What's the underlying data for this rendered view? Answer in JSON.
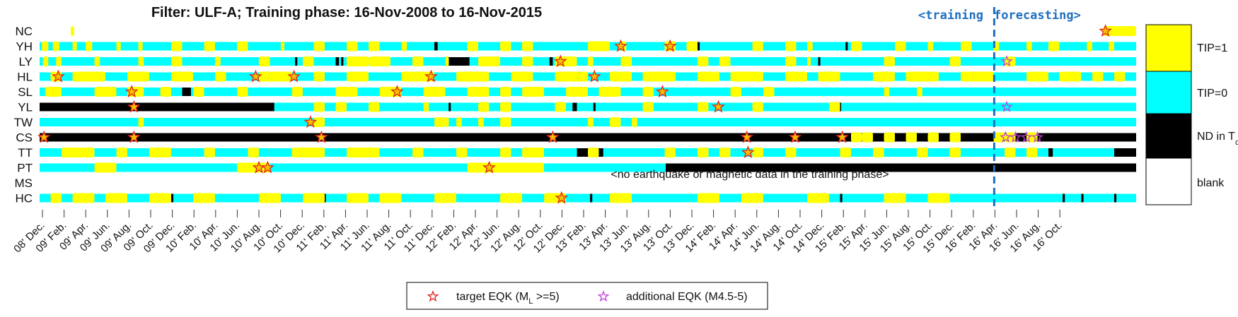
{
  "title": "Filter: ULF-A; Training phase: 16-Nov-2008 to 16-Nov-2015",
  "phase_labels": {
    "training": "<training",
    "forecasting": "forecasting>"
  },
  "no_data_note": "<no earthquake or magnetic data in the training phase>",
  "legend": {
    "tip1": "TIP=1",
    "tip0": "TIP=0",
    "nd": "ND in T",
    "nd_sub": "obs",
    "blank": "blank"
  },
  "bottom_legend": {
    "target": "target EQK (M",
    "target_sub": "L",
    "target_tail": " >=5)",
    "additional": "additional EQK (M4.5-5)"
  },
  "colors": {
    "tip1": "#ffff00",
    "tip0": "#00ffff",
    "nd": "#000000",
    "blank": "#ffffff",
    "target": "#e0201b",
    "additional": "#c040e0",
    "forecast_line": "#1f6fc0"
  },
  "chart_data": {
    "type": "timeline",
    "x_range": [
      "2008-11-16",
      "2016-11-30"
    ],
    "forecast_start": "2015-11-16",
    "x_tick_labels": [
      "08' Dec.",
      "09' Feb.",
      "09' Apr.",
      "09' Jun.",
      "09' Aug.",
      "09' Oct.",
      "09' Dec.",
      "10' Feb.",
      "10' Apr.",
      "10' Jun.",
      "10' Aug.",
      "10' Oct.",
      "10' Dec.",
      "11' Feb.",
      "11' Apr.",
      "11' Jun.",
      "11' Aug.",
      "11' Oct.",
      "11' Dec.",
      "12' Feb.",
      "12' Apr.",
      "12' Jun.",
      "12' Aug.",
      "12' Oct.",
      "12' Dec.",
      "13' Feb.",
      "13' Apr.",
      "13' Jun.",
      "13' Aug.",
      "13' Oct.",
      "13' Dec.",
      "14' Feb.",
      "14' Apr.",
      "14' Jun.",
      "14' Aug.",
      "14' Oct.",
      "14' Dec.",
      "15' Feb.",
      "15' Apr.",
      "15' Jun.",
      "15' Aug.",
      "15' Oct.",
      "15' Dec.",
      "16' Feb.",
      "16' Apr.",
      "16' Jun.",
      "16' Aug.",
      "16' Oct."
    ],
    "stations": [
      {
        "name": "NC",
        "base": "blank",
        "nd": [],
        "tip": [
          [
            0.03,
            0.03
          ],
          [
            0.97,
            1.0
          ]
        ],
        "targets": [
          0.972
        ],
        "additional": []
      },
      {
        "name": "YH",
        "base": "tip0",
        "nd": [
          [
            0.36,
            0.363
          ],
          [
            0.6,
            0.602
          ],
          [
            0.735,
            0.737
          ]
        ],
        "tip": [
          [
            0.002,
            0.008
          ],
          [
            0.012,
            0.018
          ],
          [
            0.03,
            0.034
          ],
          [
            0.042,
            0.048
          ],
          [
            0.07,
            0.074
          ],
          [
            0.09,
            0.094
          ],
          [
            0.12,
            0.13
          ],
          [
            0.15,
            0.16
          ],
          [
            0.18,
            0.19
          ],
          [
            0.22,
            0.222
          ],
          [
            0.25,
            0.26
          ],
          [
            0.28,
            0.29
          ],
          [
            0.3,
            0.31
          ],
          [
            0.33,
            0.335
          ],
          [
            0.39,
            0.4
          ],
          [
            0.42,
            0.43
          ],
          [
            0.44,
            0.45
          ],
          [
            0.5,
            0.52
          ],
          [
            0.53,
            0.535
          ],
          [
            0.57,
            0.58
          ],
          [
            0.59,
            0.6
          ],
          [
            0.65,
            0.66
          ],
          [
            0.68,
            0.69
          ],
          [
            0.7,
            0.705
          ],
          [
            0.74,
            0.75
          ],
          [
            0.78,
            0.79
          ],
          [
            0.81,
            0.815
          ],
          [
            0.84,
            0.85
          ],
          [
            0.87,
            0.875
          ],
          [
            0.9,
            0.905
          ],
          [
            0.92,
            0.93
          ],
          [
            0.955,
            0.96
          ],
          [
            0.975,
            0.98
          ]
        ],
        "targets": [
          0.53,
          0.575
        ],
        "additional": []
      },
      {
        "name": "LY",
        "base": "tip0",
        "nd": [
          [
            0.233,
            0.235
          ],
          [
            0.27,
            0.273
          ],
          [
            0.275,
            0.277
          ],
          [
            0.37,
            0.39
          ],
          [
            0.39,
            0.392
          ],
          [
            0.465,
            0.468
          ],
          [
            0.71,
            0.712
          ]
        ],
        "tip": [
          [
            0.003,
            0.008
          ],
          [
            0.015,
            0.02
          ],
          [
            0.05,
            0.055
          ],
          [
            0.09,
            0.095
          ],
          [
            0.12,
            0.13
          ],
          [
            0.16,
            0.165
          ],
          [
            0.2,
            0.21
          ],
          [
            0.24,
            0.25
          ],
          [
            0.28,
            0.3
          ],
          [
            0.3,
            0.32
          ],
          [
            0.34,
            0.35
          ],
          [
            0.37,
            0.372
          ],
          [
            0.4,
            0.42
          ],
          [
            0.44,
            0.45
          ],
          [
            0.47,
            0.49
          ],
          [
            0.5,
            0.505
          ],
          [
            0.53,
            0.54
          ],
          [
            0.6,
            0.61
          ],
          [
            0.62,
            0.63
          ],
          [
            0.68,
            0.69
          ],
          [
            0.7,
            0.702
          ],
          [
            0.77,
            0.78
          ],
          [
            0.83,
            0.84
          ],
          [
            0.88,
            0.89
          ]
        ],
        "targets": [
          0.475
        ],
        "additional": [
          0.882
        ]
      },
      {
        "name": "HL",
        "base": "tip0",
        "nd": [],
        "tip": [
          [
            0.01,
            0.02
          ],
          [
            0.03,
            0.06
          ],
          [
            0.08,
            0.1
          ],
          [
            0.12,
            0.14
          ],
          [
            0.16,
            0.17
          ],
          [
            0.2,
            0.23
          ],
          [
            0.25,
            0.26
          ],
          [
            0.28,
            0.3
          ],
          [
            0.33,
            0.36
          ],
          [
            0.38,
            0.41
          ],
          [
            0.43,
            0.45
          ],
          [
            0.47,
            0.5
          ],
          [
            0.52,
            0.54
          ],
          [
            0.55,
            0.58
          ],
          [
            0.6,
            0.62
          ],
          [
            0.63,
            0.66
          ],
          [
            0.68,
            0.7
          ],
          [
            0.71,
            0.73
          ],
          [
            0.76,
            0.78
          ],
          [
            0.79,
            0.82
          ],
          [
            0.84,
            0.87
          ],
          [
            0.9,
            0.92
          ],
          [
            0.93,
            0.95
          ],
          [
            0.96,
            0.97
          ],
          [
            0.98,
            0.99
          ]
        ],
        "targets": [
          0.017,
          0.197,
          0.232,
          0.357,
          0.506
        ],
        "additional": []
      },
      {
        "name": "SL",
        "base": "tip0",
        "nd": [
          [
            0.13,
            0.138
          ]
        ],
        "tip": [
          [
            0.005,
            0.02
          ],
          [
            0.05,
            0.07
          ],
          [
            0.08,
            0.095
          ],
          [
            0.11,
            0.12
          ],
          [
            0.14,
            0.15
          ],
          [
            0.18,
            0.19
          ],
          [
            0.23,
            0.24
          ],
          [
            0.27,
            0.29
          ],
          [
            0.31,
            0.33
          ],
          [
            0.35,
            0.37
          ],
          [
            0.39,
            0.41
          ],
          [
            0.42,
            0.43
          ],
          [
            0.44,
            0.46
          ],
          [
            0.48,
            0.5
          ],
          [
            0.51,
            0.53
          ],
          [
            0.55,
            0.56
          ],
          [
            0.63,
            0.64
          ],
          [
            0.66,
            0.67
          ],
          [
            0.77,
            0.775
          ],
          [
            0.8,
            0.805
          ]
        ],
        "targets": [
          0.084,
          0.326,
          0.568
        ],
        "additional": []
      },
      {
        "name": "YL",
        "base": "tip0",
        "nd": [
          [
            0.0,
            0.214
          ],
          [
            0.256,
            0.258
          ],
          [
            0.308,
            0.31
          ],
          [
            0.373,
            0.375
          ],
          [
            0.486,
            0.49
          ],
          [
            0.505,
            0.507
          ],
          [
            0.727,
            0.731
          ]
        ],
        "tip": [
          [
            0.25,
            0.26
          ],
          [
            0.27,
            0.28
          ],
          [
            0.3,
            0.31
          ],
          [
            0.35,
            0.355
          ],
          [
            0.4,
            0.41
          ],
          [
            0.42,
            0.43
          ],
          [
            0.47,
            0.48
          ],
          [
            0.55,
            0.56
          ],
          [
            0.6,
            0.61
          ],
          [
            0.65,
            0.66
          ],
          [
            0.72,
            0.73
          ]
        ],
        "targets": [
          0.086,
          0.619
        ],
        "additional": [
          0.882
        ]
      },
      {
        "name": "TW",
        "base": "tip0",
        "nd": [],
        "tip": [
          [
            0.09,
            0.095
          ],
          [
            0.25,
            0.26
          ],
          [
            0.36,
            0.37
          ],
          [
            0.37,
            0.372
          ],
          [
            0.38,
            0.385
          ],
          [
            0.4,
            0.405
          ],
          [
            0.42,
            0.43
          ],
          [
            0.5,
            0.505
          ],
          [
            0.52,
            0.53
          ],
          [
            0.54,
            0.545
          ]
        ],
        "targets": [
          0.247
        ],
        "additional": []
      },
      {
        "name": "CS",
        "base": "nd",
        "nd": [
          [
            0.0,
            0.692
          ]
        ],
        "tip": [
          [
            0.74,
            0.75
          ],
          [
            0.75,
            0.76
          ],
          [
            0.77,
            0.78
          ],
          [
            0.79,
            0.8
          ],
          [
            0.81,
            0.82
          ],
          [
            0.83,
            0.84
          ],
          [
            0.87,
            0.88
          ],
          [
            0.88,
            0.89
          ],
          [
            0.9,
            0.91
          ]
        ],
        "targets": [
          0.004,
          0.086,
          0.257,
          0.468,
          0.645,
          0.689,
          0.732
        ],
        "additional": [
          0.881,
          0.89,
          0.9,
          0.91
        ]
      },
      {
        "name": "TT",
        "base": "tip0",
        "nd": [
          [
            0.49,
            0.514
          ],
          [
            0.92,
            0.924
          ],
          [
            0.98,
            1.0
          ]
        ],
        "tip": [
          [
            0.02,
            0.05
          ],
          [
            0.07,
            0.08
          ],
          [
            0.1,
            0.12
          ],
          [
            0.15,
            0.16
          ],
          [
            0.19,
            0.2
          ],
          [
            0.23,
            0.26
          ],
          [
            0.28,
            0.31
          ],
          [
            0.34,
            0.35
          ],
          [
            0.38,
            0.39
          ],
          [
            0.42,
            0.43
          ],
          [
            0.44,
            0.46
          ],
          [
            0.5,
            0.51
          ],
          [
            0.57,
            0.58
          ],
          [
            0.6,
            0.61
          ],
          [
            0.62,
            0.63
          ],
          [
            0.65,
            0.66
          ],
          [
            0.68,
            0.69
          ],
          [
            0.73,
            0.74
          ],
          [
            0.76,
            0.77
          ],
          [
            0.8,
            0.81
          ],
          [
            0.83,
            0.84
          ],
          [
            0.88,
            0.89
          ],
          [
            0.9,
            0.91
          ]
        ],
        "targets": [
          0.646
        ],
        "additional": []
      },
      {
        "name": "PT",
        "base": "tip0",
        "nd": [
          [
            0.571,
            1.0
          ]
        ],
        "tip": [
          [
            0.05,
            0.07
          ],
          [
            0.18,
            0.21
          ],
          [
            0.39,
            0.46
          ]
        ],
        "targets": [
          0.2,
          0.208,
          0.41
        ],
        "additional": []
      },
      {
        "name": "MS",
        "base": "blank",
        "nd": [],
        "tip": [],
        "targets": [],
        "additional": []
      },
      {
        "name": "HC",
        "base": "tip0",
        "nd": [
          [
            0.12,
            0.122
          ],
          [
            0.259,
            0.261
          ],
          [
            0.502,
            0.504
          ],
          [
            0.73,
            0.732
          ],
          [
            0.933,
            0.935
          ],
          [
            0.95,
            0.952
          ],
          [
            0.98,
            0.982
          ]
        ],
        "tip": [
          [
            0.01,
            0.02
          ],
          [
            0.03,
            0.05
          ],
          [
            0.06,
            0.08
          ],
          [
            0.1,
            0.12
          ],
          [
            0.14,
            0.16
          ],
          [
            0.2,
            0.22
          ],
          [
            0.24,
            0.26
          ],
          [
            0.28,
            0.3
          ],
          [
            0.31,
            0.33
          ],
          [
            0.36,
            0.38
          ],
          [
            0.42,
            0.44
          ],
          [
            0.46,
            0.48
          ],
          [
            0.52,
            0.54
          ],
          [
            0.6,
            0.62
          ],
          [
            0.64,
            0.66
          ],
          [
            0.7,
            0.72
          ],
          [
            0.77,
            0.79
          ],
          [
            0.81,
            0.83
          ]
        ],
        "targets": [
          0.476
        ],
        "additional": []
      }
    ]
  }
}
